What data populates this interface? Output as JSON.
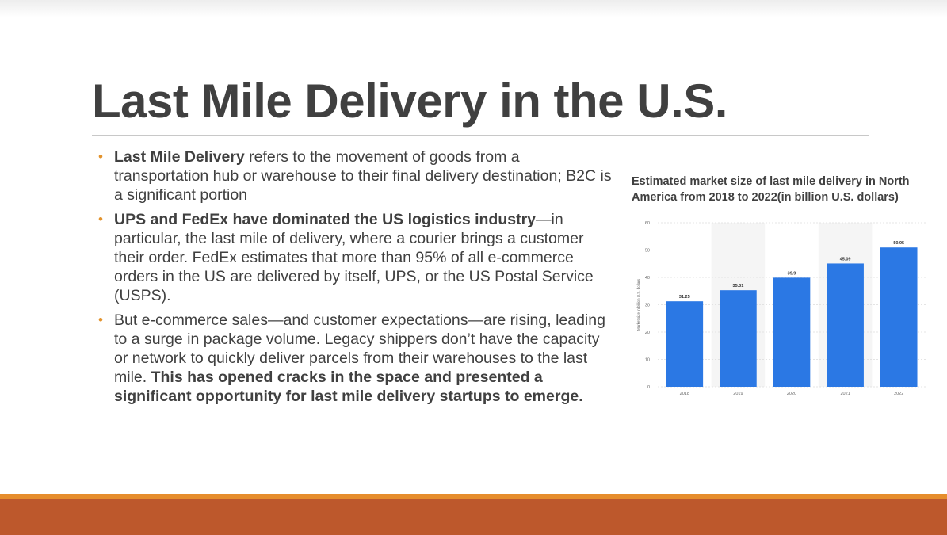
{
  "slide": {
    "title": "Last Mile Delivery in the U.S."
  },
  "bullets": [
    {
      "segments": [
        {
          "text": "Last Mile Delivery",
          "bold": true
        },
        {
          "text": " refers to the movement of goods from a transportation hub or warehouse to their final delivery destination; B2C is a significant portion",
          "bold": false
        }
      ]
    },
    {
      "segments": [
        {
          "text": "UPS and FedEx have dominated the US logistics industry",
          "bold": true
        },
        {
          "text": "—in particular, the last mile of delivery, where a courier brings a customer their order. FedEx estimates that more than 95% of all e-commerce orders in the US are delivered by itself, UPS, or the US Postal Service (USPS).",
          "bold": false
        }
      ]
    },
    {
      "segments": [
        {
          "text": "But e-commerce sales—and customer expectations—are rising, leading to a surge in package volume. Legacy shippers don’t have the capacity or network to quickly deliver parcels from their warehouses to the last mile. ",
          "bold": false
        },
        {
          "text": "This has opened cracks in the space and presented a significant opportunity for last mile delivery startups to emerge.",
          "bold": true
        }
      ]
    }
  ],
  "colors": {
    "bullet_marker": "#e3932d",
    "bar": "#2b78e4",
    "footer_light": "#e68d2c",
    "footer_dark": "#bd582c"
  },
  "chart_data": {
    "type": "bar",
    "title": "Estimated market size of last mile delivery in North America from 2018 to 2022(in billion U.S. dollars)",
    "categories": [
      "2018",
      "2019",
      "2020",
      "2021",
      "2022"
    ],
    "values": [
      31.25,
      35.31,
      39.9,
      45.09,
      50.95
    ],
    "value_labels": [
      "31.25",
      "35.31",
      "39.9",
      "45.09",
      "50.95"
    ],
    "xlabel": "",
    "ylabel": "Market size in billion U.S. dollars",
    "ylim": [
      0,
      60
    ],
    "yticks": [
      0,
      10,
      20,
      30,
      40,
      50,
      60
    ],
    "grid": true,
    "legend": "none"
  }
}
